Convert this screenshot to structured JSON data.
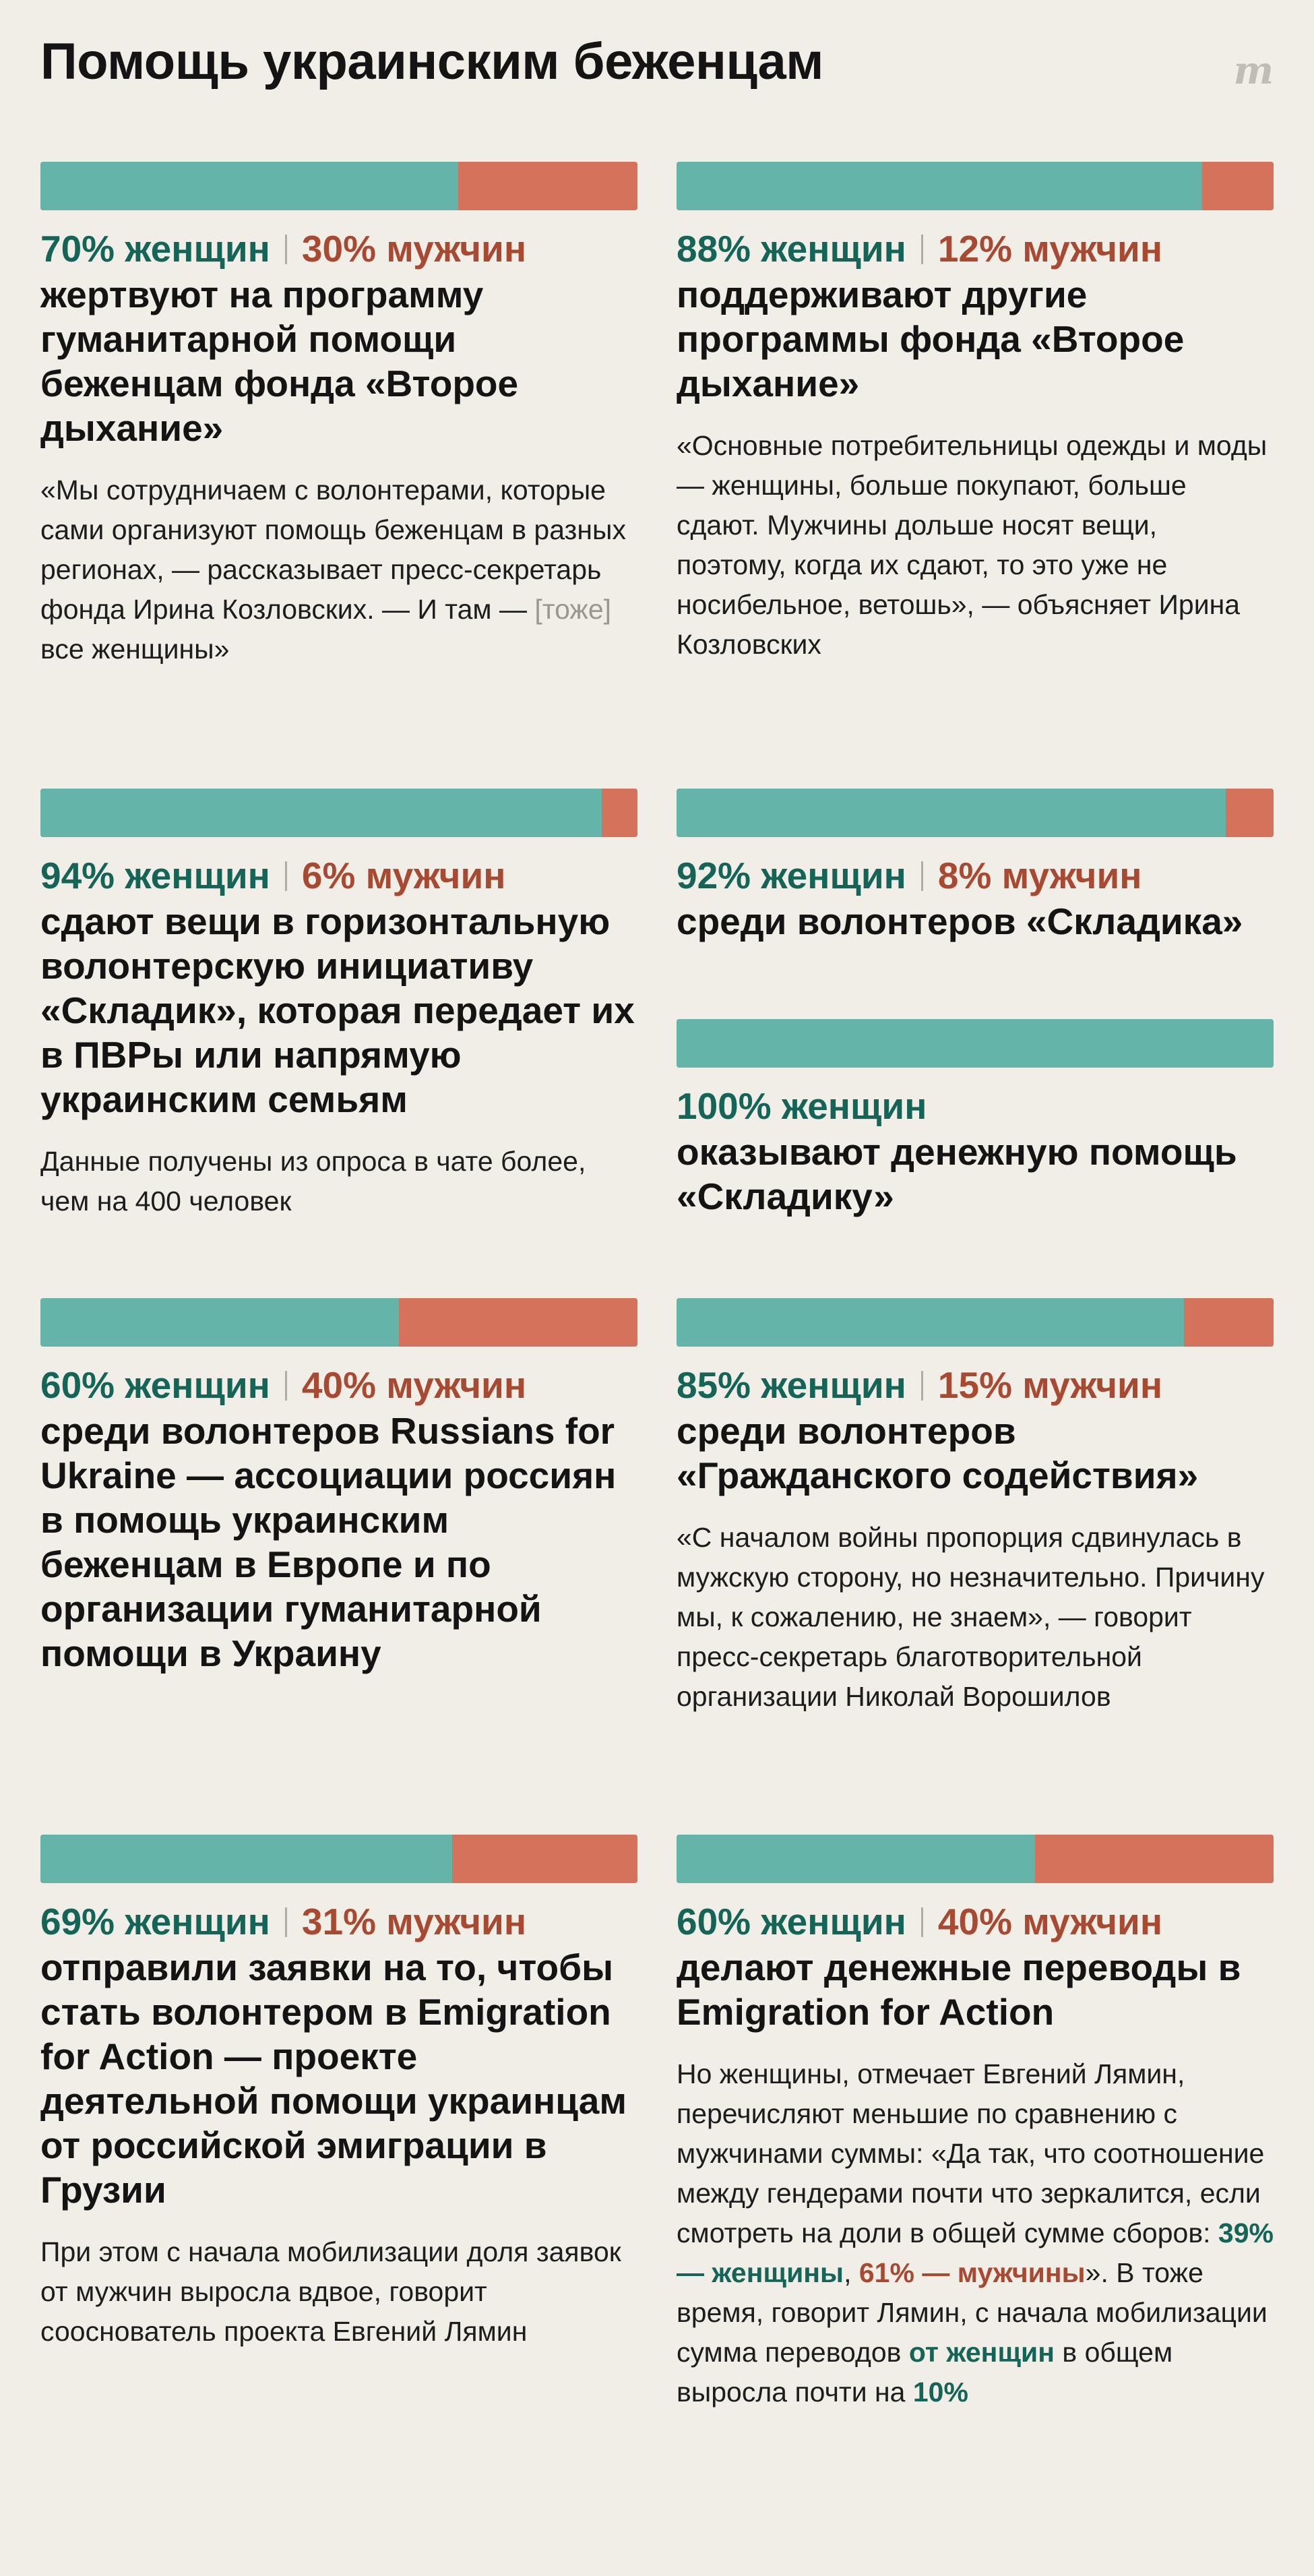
{
  "title": "Помощь украинским беженцам",
  "logo": "m",
  "colors": {
    "women": "#64b4aa",
    "men": "#d4725c",
    "women_text": "#156458",
    "men_text": "#a84a32"
  },
  "chart_data": [
    {
      "type": "bar",
      "orientation": "horizontal-stacked",
      "series": [
        {
          "name": "женщин",
          "values": [
            70
          ]
        },
        {
          "name": "мужчин",
          "values": [
            30
          ]
        }
      ],
      "women_label": "70% женщин",
      "men_label": "30% мужчин",
      "headline": "жертвуют на программу гуманитарной помощи беженцам фонда «Второе дыхание»",
      "note": "«Мы сотрудничаем с волонтерами, которые сами организуют помощь беженцам в разных регионах, — рассказывает пресс-секретарь фонда Ирина Козловских. — И там —",
      "note_gray": "[тоже]",
      "note_tail": "все женщины»"
    },
    {
      "type": "bar",
      "orientation": "horizontal-stacked",
      "series": [
        {
          "name": "женщин",
          "values": [
            88
          ]
        },
        {
          "name": "мужчин",
          "values": [
            12
          ]
        }
      ],
      "women_label": "88% женщин",
      "men_label": "12% мужчин",
      "headline": "поддерживают другие программы фонда «Второе дыхание»",
      "note": "«Основные потребительницы одежды и моды — женщины, больше покупают, больше сдают. Мужчины дольше носят вещи, поэтому, когда их сдают, то это уже не носибельное, ветошь», — объясняет Ирина Козловских"
    },
    {
      "type": "bar",
      "orientation": "horizontal-stacked",
      "series": [
        {
          "name": "женщин",
          "values": [
            94
          ]
        },
        {
          "name": "мужчин",
          "values": [
            6
          ]
        }
      ],
      "women_label": "94% женщин",
      "men_label": "6% мужчин",
      "headline": "сдают вещи в горизонтальную волонтерскую инициативу «Складик», которая передает их в ПВРы или напрямую украинским семьям",
      "note": "Данные получены из опроса в чате более, чем на 400 человек"
    },
    {
      "type": "bar",
      "orientation": "horizontal-stacked",
      "series": [
        {
          "name": "женщин",
          "values": [
            92
          ]
        },
        {
          "name": "мужчин",
          "values": [
            8
          ]
        }
      ],
      "women_label": "92% женщин",
      "men_label": "8% мужчин",
      "headline": "среди волонтеров «Складика»"
    },
    {
      "type": "bar",
      "orientation": "horizontal-stacked",
      "series": [
        {
          "name": "женщин",
          "values": [
            100
          ]
        },
        {
          "name": "мужчин",
          "values": [
            0
          ]
        }
      ],
      "women_label": "100% женщин",
      "headline": "оказывают денежную помощь «Складику»"
    },
    {
      "type": "bar",
      "orientation": "horizontal-stacked",
      "series": [
        {
          "name": "женщин",
          "values": [
            60
          ]
        },
        {
          "name": "мужчин",
          "values": [
            40
          ]
        }
      ],
      "women_label": "60% женщин",
      "men_label": "40% мужчин",
      "headline": "среди волонтеров Russians for Ukraine — ассоциации россиян в помощь украинским беженцам в Европе и по организации гуманитарной помощи в Украину"
    },
    {
      "type": "bar",
      "orientation": "horizontal-stacked",
      "series": [
        {
          "name": "женщин",
          "values": [
            85
          ]
        },
        {
          "name": "мужчин",
          "values": [
            15
          ]
        }
      ],
      "women_label": "85% женщин",
      "men_label": "15% мужчин",
      "headline": "среди волонтеров «Гражданского содействия»",
      "note": "«С началом войны пропорция сдвинулась в мужскую сторону, но незначительно. Причину мы, к сожалению, не знаем», — говорит пресс-секретарь благотворительной организации Николай Ворошилов"
    },
    {
      "type": "bar",
      "orientation": "horizontal-stacked",
      "series": [
        {
          "name": "женщин",
          "values": [
            69
          ]
        },
        {
          "name": "мужчин",
          "values": [
            31
          ]
        }
      ],
      "women_label": "69% женщин",
      "men_label": "31% мужчин",
      "headline": "отправили заявки на то, чтобы стать волонтером в Emigration for Action — проекте деятельной помощи украинцам от российской эмиграции в Грузии",
      "note": "При этом с начала мобилизации доля заявок от мужчин выросла вдвое, говорит сооснователь проекта Евгений Лямин"
    },
    {
      "type": "bar",
      "orientation": "horizontal-stacked",
      "series": [
        {
          "name": "женщин",
          "values": [
            60
          ]
        },
        {
          "name": "мужчин",
          "values": [
            40
          ]
        }
      ],
      "women_label": "60% женщин",
      "men_label": "40% мужчин",
      "headline": "делают денежные переводы в Emigration for Action",
      "note_a": "Но женщины, отмечает Евгений Лямин, перечисляют меньшие по сравнению с мужчинами суммы: «Да так, что соотношение между гендерами почти что зеркалится, если смотреть на  доли в общей сумме сборов:",
      "note_b": "39% — женщины",
      "note_c": ",",
      "note_d": "61% — мужчины",
      "note_e": "». В тоже время, говорит Лямин, с начала мобилизации сумма переводов",
      "note_f": "от женщин",
      "note_g": "в общем выросла почти на",
      "note_h": "10%"
    }
  ]
}
